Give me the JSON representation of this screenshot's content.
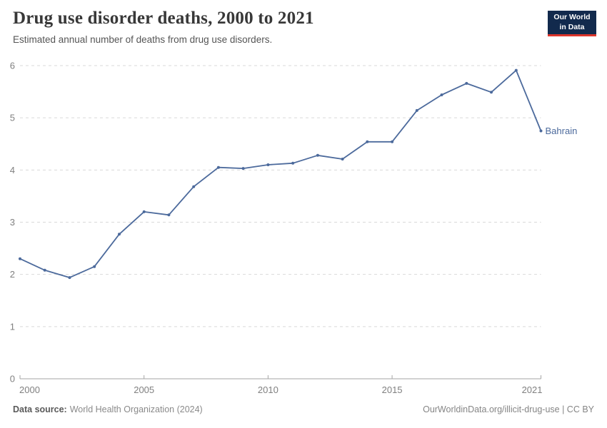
{
  "header": {
    "title": "Drug use disorder deaths, 2000 to 2021",
    "subtitle": "Estimated annual number of deaths from drug use disorders."
  },
  "logo": {
    "line1": "Our World",
    "line2": "in Data"
  },
  "footer": {
    "source_label": "Data source:",
    "source_text": "World Health Organization (2024)",
    "license_text": "OurWorldinData.org/illicit-drug-use | CC BY"
  },
  "colors": {
    "line": "#4C6A9C",
    "entity_label": "#4C6A9C",
    "grid": "#d9d9d9",
    "axis": "#a5a5a5",
    "tick_text": "#808080",
    "logo_bg": "#122A4D",
    "logo_stripe": "#DC352B"
  },
  "chart_data": {
    "type": "line",
    "title": "Drug use disorder deaths, 2000 to 2021",
    "subtitle": "Estimated annual number of deaths from drug use disorders.",
    "x": [
      2000,
      2001,
      2002,
      2003,
      2004,
      2005,
      2006,
      2007,
      2008,
      2009,
      2010,
      2011,
      2012,
      2013,
      2014,
      2015,
      2016,
      2017,
      2018,
      2019,
      2020,
      2021
    ],
    "series": [
      {
        "name": "Bahrain",
        "color": "#4C6A9C",
        "values": [
          2.3,
          2.08,
          1.94,
          2.15,
          2.77,
          3.2,
          3.14,
          3.68,
          4.05,
          4.03,
          4.1,
          4.13,
          4.28,
          4.21,
          4.54,
          4.54,
          5.14,
          5.44,
          5.66,
          5.49,
          5.91,
          4.75
        ]
      }
    ],
    "ylim": [
      0,
      6
    ],
    "yticks": [
      0,
      1,
      2,
      3,
      4,
      5,
      6
    ],
    "xticks": [
      2000,
      2005,
      2010,
      2015,
      2021
    ],
    "xlabel": "",
    "ylabel": "",
    "grid": "horizontal-dashed",
    "legend": "end-of-line-label"
  }
}
